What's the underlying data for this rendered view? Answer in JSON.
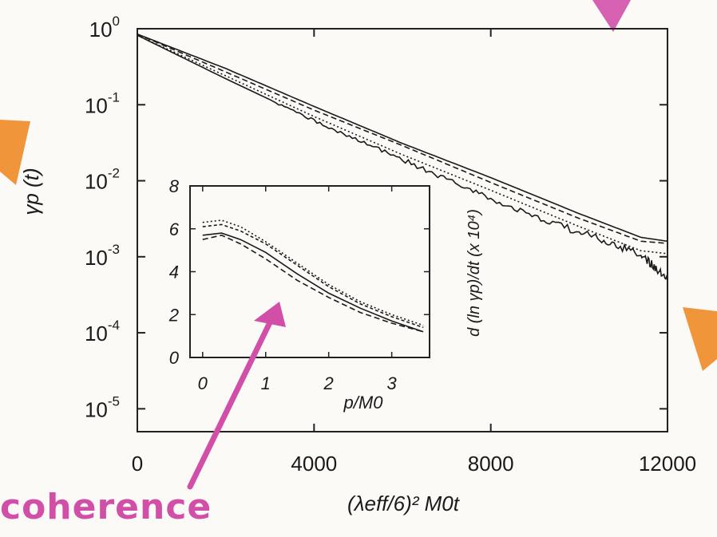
{
  "chart_data": [
    {
      "type": "line",
      "title": "",
      "xlabel": "(λeff/6)² M0t",
      "ylabel": "γp (t)",
      "yscale": "log",
      "xlim": [
        0,
        12000
      ],
      "ylim": [
        5e-06,
        1
      ],
      "x_ticks": [
        "0",
        "4000",
        "8000",
        "12000"
      ],
      "y_ticks": [
        {
          "base": "10",
          "exp": "0"
        },
        {
          "base": "10",
          "exp": "-1"
        },
        {
          "base": "10",
          "exp": "-2"
        },
        {
          "base": "10",
          "exp": "-3"
        },
        {
          "base": "10",
          "exp": "-4"
        },
        {
          "base": "10",
          "exp": "-5"
        }
      ],
      "grid": false,
      "legend": "none",
      "series": [
        {
          "style": "solid",
          "x": [
            0,
            2000,
            4000,
            6000,
            8000,
            10000,
            11400,
            12000
          ],
          "y": [
            0.85,
            0.3,
            0.095,
            0.031,
            0.011,
            0.0037,
            0.0018,
            0.0016
          ]
        },
        {
          "style": "dashed",
          "x": [
            0,
            2000,
            4000,
            6000,
            8000,
            10000,
            11400,
            12000
          ],
          "y": [
            0.85,
            0.27,
            0.085,
            0.029,
            0.0095,
            0.0032,
            0.0016,
            0.0015
          ]
        },
        {
          "style": "dotted",
          "x": [
            0,
            2000,
            4000,
            6000,
            8000,
            10000,
            11400,
            12000
          ],
          "y": [
            0.82,
            0.24,
            0.07,
            0.022,
            0.0075,
            0.0025,
            0.0012,
            0.0011
          ]
        },
        {
          "style": "solid-noisy",
          "x": [
            0,
            2000,
            4000,
            6000,
            8000,
            10000,
            11400,
            12000
          ],
          "y": [
            0.82,
            0.22,
            0.062,
            0.019,
            0.0058,
            0.0021,
            0.0011,
            0.0005
          ]
        }
      ]
    },
    {
      "type": "line",
      "title": "",
      "xlabel": "p/M0",
      "ylabel": "d (ln γp)/dt (x 10⁴)",
      "xlim": [
        -0.2,
        3.6
      ],
      "ylim": [
        0,
        8
      ],
      "x_ticks": [
        "0",
        "1",
        "2",
        "3"
      ],
      "y_ticks": [
        "0",
        "2",
        "4",
        "6",
        "8"
      ],
      "grid": false,
      "legend": "none",
      "series": [
        {
          "style": "dotted",
          "x": [
            0,
            0.3,
            0.6,
            1.0,
            1.5,
            2.0,
            2.5,
            3.0,
            3.5
          ],
          "y": [
            6.3,
            6.4,
            6.1,
            5.4,
            4.4,
            3.4,
            2.6,
            2.0,
            1.5
          ]
        },
        {
          "style": "dashed-short",
          "x": [
            0,
            0.3,
            0.6,
            1.0,
            1.5,
            2.0,
            2.5,
            3.0,
            3.5
          ],
          "y": [
            6.1,
            6.2,
            5.9,
            5.3,
            4.3,
            3.3,
            2.5,
            1.9,
            1.4
          ]
        },
        {
          "style": "solid",
          "x": [
            0,
            0.3,
            0.6,
            1.0,
            1.5,
            2.0,
            2.5,
            3.0,
            3.5
          ],
          "y": [
            5.7,
            5.8,
            5.5,
            4.9,
            3.9,
            3.0,
            2.3,
            1.7,
            1.2
          ]
        },
        {
          "style": "dashed",
          "x": [
            0,
            0.3,
            0.6,
            1.0,
            1.5,
            2.0,
            2.5,
            3.0,
            3.5
          ],
          "y": [
            5.5,
            5.7,
            5.3,
            4.6,
            3.6,
            2.8,
            2.1,
            1.6,
            1.2
          ]
        }
      ]
    }
  ],
  "annotations": {
    "handwritten_note": "coherence",
    "marker_color_pink": "#d24fa8",
    "marker_color_orange": "#f08a26"
  }
}
